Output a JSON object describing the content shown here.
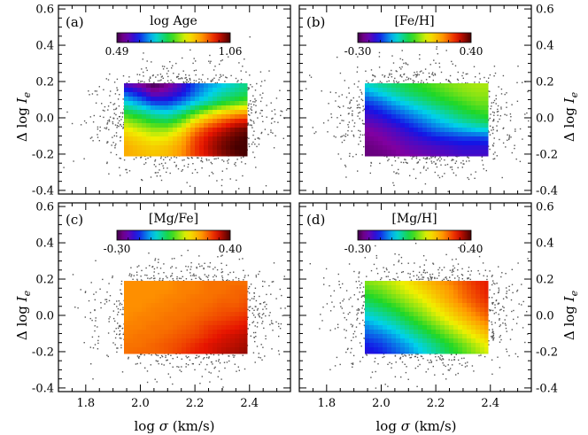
{
  "chart_data": {
    "type": "scatter+heatmap",
    "figure_note": "2x2 panels; background grey points are individual galaxies; colored region is a smoothed map of stellar-population parameter as function of log sigma and Delta log I_e",
    "x_axis": {
      "label_prefix": "log",
      "label_symbol": "σ",
      "label_units": "(km/s)",
      "xlim": [
        1.7,
        2.55
      ],
      "ticks": [
        1.8,
        2.0,
        2.2,
        2.4
      ],
      "tick_labels": [
        "1.8",
        "2.0",
        "2.2",
        "2.4"
      ]
    },
    "y_axis": {
      "label_prefix": "Δ log",
      "label_symbol": "I",
      "label_sub": "e",
      "ylim": [
        -0.42,
        0.62
      ],
      "ticks": [
        -0.4,
        -0.2,
        0.0,
        0.2,
        0.4,
        0.6
      ],
      "tick_labels": [
        "-0.4",
        "-0.2",
        "0.0",
        "0.2",
        "0.4",
        "0.6"
      ]
    },
    "map_region": {
      "x_range": [
        1.94,
        2.39
      ],
      "y_range": [
        -0.21,
        0.19
      ]
    },
    "scatter": {
      "n_points": 2200,
      "x_center": 2.17,
      "x_spread": 0.14,
      "y_center": 0.0,
      "y_spread": 0.13
    },
    "panels": [
      {
        "id": "a",
        "panel_label": "(a)",
        "colorbar_label": "log Age",
        "colorbar_min": "0.49",
        "colorbar_max": "1.06",
        "colormap": "rainbow",
        "vmin": 0.49,
        "vmax": 1.06,
        "grid_x": [
          1.94,
          2.0,
          2.05,
          2.1,
          2.15,
          2.2,
          2.25,
          2.3,
          2.35,
          2.39
        ],
        "grid_y": [
          0.19,
          0.14,
          0.09,
          0.04,
          -0.01,
          -0.06,
          -0.11,
          -0.16,
          -0.21
        ],
        "values": [
          [
            0.55,
            0.52,
            0.49,
            0.52,
            0.56,
            0.62,
            0.65,
            0.67,
            0.7,
            0.72
          ],
          [
            0.62,
            0.58,
            0.53,
            0.55,
            0.58,
            0.63,
            0.67,
            0.7,
            0.72,
            0.73
          ],
          [
            0.68,
            0.64,
            0.6,
            0.6,
            0.63,
            0.67,
            0.7,
            0.74,
            0.76,
            0.78
          ],
          [
            0.74,
            0.71,
            0.68,
            0.67,
            0.7,
            0.75,
            0.8,
            0.84,
            0.87,
            0.88
          ],
          [
            0.8,
            0.77,
            0.74,
            0.73,
            0.77,
            0.84,
            0.9,
            0.94,
            0.97,
            0.98
          ],
          [
            0.85,
            0.82,
            0.8,
            0.8,
            0.84,
            0.92,
            0.97,
            1.0,
            1.03,
            1.04
          ],
          [
            0.88,
            0.86,
            0.84,
            0.85,
            0.89,
            0.96,
            1.0,
            1.03,
            1.05,
            1.06
          ],
          [
            0.9,
            0.88,
            0.87,
            0.88,
            0.91,
            0.97,
            1.01,
            1.04,
            1.06,
            1.06
          ],
          [
            0.9,
            0.89,
            0.88,
            0.89,
            0.92,
            0.97,
            1.0,
            1.03,
            1.05,
            1.06
          ]
        ]
      },
      {
        "id": "b",
        "panel_label": "(b)",
        "colorbar_label": "[Fe/H]",
        "colorbar_min": "-0.30",
        "colorbar_max": "0.40",
        "colormap": "rainbow",
        "vmin": -0.3,
        "vmax": 0.4,
        "grid_x": [
          1.94,
          2.0,
          2.05,
          2.1,
          2.15,
          2.2,
          2.25,
          2.3,
          2.35,
          2.39
        ],
        "grid_y": [
          0.19,
          0.14,
          0.09,
          0.04,
          -0.01,
          -0.06,
          -0.11,
          -0.16,
          -0.21
        ],
        "values": [
          [
            -0.05,
            -0.02,
            0.0,
            0.02,
            0.04,
            0.06,
            0.08,
            0.09,
            0.1,
            0.1
          ],
          [
            -0.1,
            -0.06,
            -0.03,
            0.0,
            0.02,
            0.04,
            0.06,
            0.08,
            0.09,
            0.09
          ],
          [
            -0.15,
            -0.12,
            -0.08,
            -0.05,
            -0.02,
            0.01,
            0.03,
            0.05,
            0.07,
            0.07
          ],
          [
            -0.19,
            -0.16,
            -0.13,
            -0.1,
            -0.07,
            -0.04,
            -0.01,
            0.02,
            0.04,
            0.05
          ],
          [
            -0.22,
            -0.2,
            -0.17,
            -0.14,
            -0.11,
            -0.08,
            -0.05,
            -0.02,
            0.0,
            0.02
          ],
          [
            -0.25,
            -0.23,
            -0.21,
            -0.18,
            -0.15,
            -0.12,
            -0.1,
            -0.08,
            -0.06,
            -0.05
          ],
          [
            -0.26,
            -0.25,
            -0.23,
            -0.21,
            -0.19,
            -0.17,
            -0.16,
            -0.15,
            -0.15,
            -0.14
          ],
          [
            -0.27,
            -0.26,
            -0.25,
            -0.23,
            -0.22,
            -0.21,
            -0.2,
            -0.19,
            -0.19,
            -0.19
          ],
          [
            -0.27,
            -0.27,
            -0.26,
            -0.25,
            -0.24,
            -0.23,
            -0.22,
            -0.21,
            -0.21,
            -0.21
          ]
        ]
      },
      {
        "id": "c",
        "panel_label": "(c)",
        "colorbar_label": "[Mg/Fe]",
        "colorbar_min": "-0.30",
        "colorbar_max": "0.40",
        "colormap": "rainbow",
        "vmin": -0.3,
        "vmax": 0.4,
        "grid_x": [
          1.94,
          2.0,
          2.05,
          2.1,
          2.15,
          2.2,
          2.25,
          2.3,
          2.35,
          2.39
        ],
        "grid_y": [
          0.19,
          0.14,
          0.09,
          0.04,
          -0.01,
          -0.06,
          -0.11,
          -0.16,
          -0.21
        ],
        "values": [
          [
            0.23,
            0.23,
            0.23,
            0.23,
            0.24,
            0.24,
            0.25,
            0.25,
            0.25,
            0.25
          ],
          [
            0.23,
            0.23,
            0.23,
            0.23,
            0.24,
            0.24,
            0.25,
            0.25,
            0.26,
            0.26
          ],
          [
            0.23,
            0.23,
            0.23,
            0.24,
            0.24,
            0.25,
            0.25,
            0.26,
            0.26,
            0.27
          ],
          [
            0.23,
            0.23,
            0.24,
            0.24,
            0.25,
            0.25,
            0.26,
            0.27,
            0.27,
            0.28
          ],
          [
            0.23,
            0.24,
            0.24,
            0.25,
            0.25,
            0.26,
            0.27,
            0.28,
            0.29,
            0.3
          ],
          [
            0.24,
            0.24,
            0.25,
            0.25,
            0.26,
            0.27,
            0.29,
            0.3,
            0.31,
            0.32
          ],
          [
            0.24,
            0.25,
            0.25,
            0.26,
            0.27,
            0.28,
            0.3,
            0.32,
            0.33,
            0.34
          ],
          [
            0.25,
            0.25,
            0.26,
            0.27,
            0.28,
            0.3,
            0.32,
            0.33,
            0.34,
            0.35
          ],
          [
            0.25,
            0.26,
            0.26,
            0.27,
            0.29,
            0.31,
            0.32,
            0.34,
            0.35,
            0.36
          ]
        ]
      },
      {
        "id": "d",
        "panel_label": "(d)",
        "colorbar_label": "[Mg/H]",
        "colorbar_min": "-0.30",
        "colorbar_max": "0.40",
        "colormap": "rainbow",
        "vmin": -0.3,
        "vmax": 0.4,
        "grid_x": [
          1.94,
          2.0,
          2.05,
          2.1,
          2.15,
          2.2,
          2.25,
          2.3,
          2.35,
          2.39
        ],
        "grid_y": [
          0.19,
          0.14,
          0.09,
          0.04,
          -0.01,
          -0.06,
          -0.11,
          -0.16,
          -0.21
        ],
        "values": [
          [
            0.08,
            0.1,
            0.12,
            0.15,
            0.18,
            0.21,
            0.24,
            0.27,
            0.3,
            0.31
          ],
          [
            0.05,
            0.07,
            0.1,
            0.13,
            0.16,
            0.19,
            0.22,
            0.26,
            0.29,
            0.31
          ],
          [
            0.01,
            0.04,
            0.07,
            0.1,
            0.13,
            0.17,
            0.21,
            0.25,
            0.28,
            0.3
          ],
          [
            -0.03,
            0.0,
            0.03,
            0.07,
            0.1,
            0.14,
            0.18,
            0.22,
            0.26,
            0.28
          ],
          [
            -0.07,
            -0.04,
            -0.01,
            0.03,
            0.07,
            0.11,
            0.15,
            0.19,
            0.23,
            0.26
          ],
          [
            -0.11,
            -0.08,
            -0.05,
            -0.01,
            0.03,
            0.07,
            0.11,
            0.15,
            0.19,
            0.22
          ],
          [
            -0.14,
            -0.12,
            -0.09,
            -0.05,
            -0.01,
            0.03,
            0.07,
            0.11,
            0.15,
            0.18
          ],
          [
            -0.17,
            -0.15,
            -0.12,
            -0.09,
            -0.05,
            -0.01,
            0.03,
            0.07,
            0.11,
            0.14
          ],
          [
            -0.19,
            -0.17,
            -0.14,
            -0.11,
            -0.07,
            -0.03,
            0.01,
            0.05,
            0.09,
            0.12
          ]
        ]
      }
    ]
  }
}
